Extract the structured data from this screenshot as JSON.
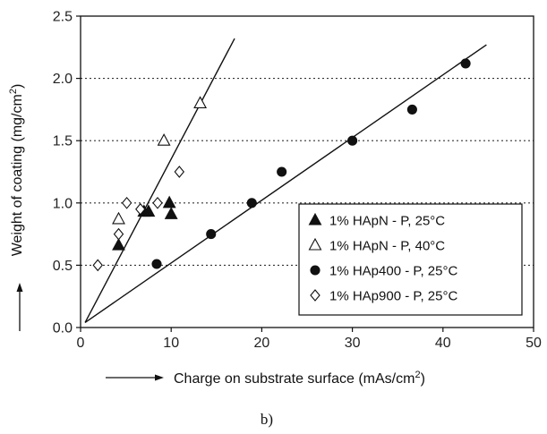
{
  "chart_data": {
    "type": "scatter",
    "xlabel_prefix": "Charge on substrate surface (mAs/cm",
    "xlabel_sup": "2",
    "xlabel_suffix": ")",
    "ylabel_prefix": "Weight of coating (mg/cm",
    "ylabel_sup": "2",
    "ylabel_suffix": ")",
    "xlim": [
      0,
      50
    ],
    "ylim": [
      0,
      2.5
    ],
    "xticks": [
      "0",
      "10",
      "20",
      "30",
      "40",
      "50"
    ],
    "yticks": [
      "0.0",
      "0.5",
      "1.0",
      "1.5",
      "2.0",
      "2.5"
    ],
    "grid": "horizontal dotted",
    "legend_position": "bottom-right",
    "series": [
      {
        "name": "1% HApN - P, 25°C",
        "marker": "triangle-filled",
        "x": [
          4.2,
          7.0,
          7.5,
          9.8,
          10.0
        ],
        "y": [
          0.66,
          0.93,
          0.93,
          1.0,
          0.91
        ]
      },
      {
        "name": "1% HApN - P, 40°C",
        "marker": "triangle-open",
        "x": [
          4.2,
          9.2,
          13.2
        ],
        "y": [
          0.87,
          1.5,
          1.8
        ]
      },
      {
        "name": "1% HAp400 - P, 25°C",
        "marker": "circle-filled",
        "x": [
          8.4,
          14.4,
          18.9,
          22.2,
          30.0,
          36.6,
          42.5
        ],
        "y": [
          0.51,
          0.75,
          1.0,
          1.25,
          1.5,
          1.75,
          2.12
        ]
      },
      {
        "name": "1% HAp900 - P, 25°C",
        "marker": "diamond-open",
        "x": [
          1.9,
          4.2,
          5.1,
          6.6,
          8.5,
          10.9
        ],
        "y": [
          0.5,
          0.75,
          1.0,
          0.95,
          1.0,
          1.25
        ]
      }
    ],
    "fit_lines": [
      {
        "x": [
          0.5,
          17.0
        ],
        "y": [
          0.04,
          2.32
        ]
      },
      {
        "x": [
          0.5,
          44.8
        ],
        "y": [
          0.04,
          2.27
        ]
      }
    ]
  },
  "caption": "b)"
}
